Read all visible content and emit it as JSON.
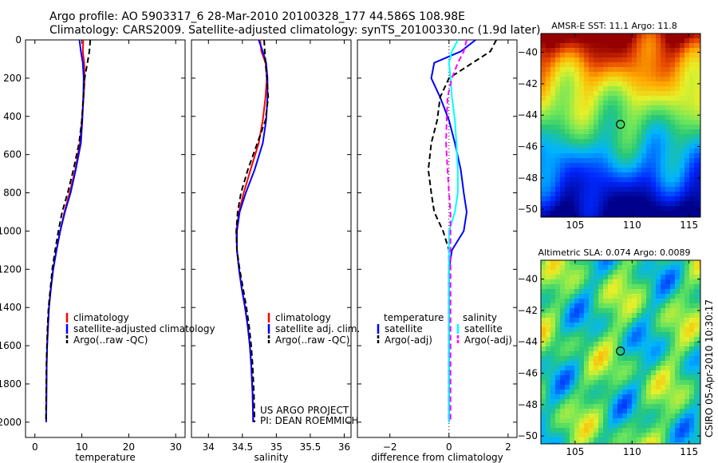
{
  "header": {
    "title_line1": "Argo profile: AO 5903317_6 28-Mar-2010 20100328_177 44.586S 108.98E",
    "title_line2": "Climatology: CARS2009. Satellite-adjusted climatology: synTS_20100330.nc (1.9d later)"
  },
  "colors": {
    "climatology": "#ff0000",
    "satellite": "#0000ff",
    "argo": "#000000",
    "satellite_salinity": "#00ffff",
    "argo_salinity": "#ff00ff",
    "dotted": "#000000"
  },
  "credits": {
    "project": "US ARGO PROJECT",
    "pi": "PI: DEAN ROEMMICH",
    "side": "CSIRO 05-Apr-2010 10:30:17"
  },
  "chart_data": [
    {
      "type": "line",
      "xlabel": "temperature",
      "ylabel": "",
      "xlim": [
        -2,
        32
      ],
      "ylim": [
        2080,
        0
      ],
      "xticks": [
        0,
        10,
        20,
        30
      ],
      "yticks": [
        0,
        200,
        400,
        600,
        800,
        1000,
        1200,
        1400,
        1600,
        1800,
        2000
      ],
      "legend": {
        "placement": "lower-right",
        "entries": [
          "climatology",
          "satellite-adjusted climatology",
          "Argo(..raw -QC)"
        ]
      },
      "series": [
        {
          "name": "climatology",
          "style": "solid",
          "color": "#ff0000",
          "x": [
            10.3,
            10.2,
            10.5,
            10.6,
            10.4,
            10.0,
            9.6,
            8.6,
            7.4,
            6.3,
            5.4,
            4.6,
            3.9,
            3.4,
            3.0,
            2.8,
            2.6,
            2.5,
            2.45,
            2.4
          ],
          "y": [
            0,
            60,
            120,
            200,
            300,
            420,
            540,
            680,
            800,
            900,
            1000,
            1100,
            1200,
            1300,
            1400,
            1500,
            1600,
            1700,
            1850,
            2000
          ]
        },
        {
          "name": "satellite-adjusted climatology",
          "style": "solid",
          "color": "#0000ff",
          "x": [
            9.5,
            9.8,
            10.2,
            10.4,
            10.3,
            10.1,
            9.8,
            8.7,
            7.6,
            6.4,
            5.4,
            4.6,
            3.9,
            3.4,
            3.0,
            2.8,
            2.6,
            2.5,
            2.45,
            2.4
          ],
          "y": [
            0,
            60,
            120,
            200,
            300,
            420,
            540,
            680,
            800,
            900,
            1000,
            1100,
            1200,
            1300,
            1400,
            1500,
            1600,
            1700,
            1850,
            2000
          ]
        },
        {
          "name": "Argo(..raw -QC)",
          "style": "dashed",
          "color": "#000000",
          "x": [
            11.8,
            11.6,
            11.2,
            10.6,
            10.3,
            10.0,
            9.4,
            8.2,
            7.0,
            5.8,
            5.0,
            4.3,
            3.7,
            3.3,
            2.9,
            2.7,
            2.55,
            2.45,
            2.4,
            2.35
          ],
          "y": [
            0,
            60,
            120,
            200,
            300,
            420,
            540,
            680,
            800,
            900,
            1000,
            1100,
            1200,
            1300,
            1400,
            1500,
            1600,
            1700,
            1850,
            2000
          ]
        }
      ]
    },
    {
      "type": "line",
      "xlabel": "salinity",
      "ylabel": "",
      "xlim": [
        33.75,
        36.1
      ],
      "ylim": [
        2080,
        0
      ],
      "xticks": [
        34,
        34.5,
        35,
        35.5,
        36
      ],
      "legend": {
        "placement": "lower-right",
        "entries": [
          "climatology",
          "satellite adj. clim.",
          "Argo(..raw -QC)"
        ]
      },
      "series": [
        {
          "name": "climatology",
          "style": "solid",
          "color": "#ff0000",
          "x": [
            34.76,
            34.78,
            34.84,
            34.86,
            34.84,
            34.8,
            34.74,
            34.62,
            34.52,
            34.45,
            34.41,
            34.42,
            34.45,
            34.49,
            34.54,
            34.58,
            34.61,
            34.63,
            34.65,
            34.66
          ],
          "y": [
            0,
            60,
            120,
            200,
            300,
            420,
            540,
            680,
            800,
            900,
            1000,
            1100,
            1200,
            1300,
            1400,
            1500,
            1600,
            1700,
            1850,
            2000
          ]
        },
        {
          "name": "satellite adj. clim.",
          "style": "solid",
          "color": "#0000ff",
          "x": [
            34.74,
            34.8,
            34.85,
            34.87,
            34.87,
            34.85,
            34.8,
            34.68,
            34.55,
            34.46,
            34.42,
            34.42,
            34.45,
            34.49,
            34.54,
            34.58,
            34.61,
            34.63,
            34.65,
            34.66
          ],
          "y": [
            0,
            60,
            120,
            200,
            300,
            420,
            540,
            680,
            800,
            900,
            1000,
            1100,
            1200,
            1300,
            1400,
            1500,
            1600,
            1700,
            1850,
            2000
          ]
        },
        {
          "name": "Argo(..raw -QC)",
          "style": "dashed",
          "color": "#000000",
          "x": [
            34.82,
            34.83,
            34.84,
            34.86,
            34.88,
            34.84,
            34.72,
            34.58,
            34.48,
            34.43,
            34.41,
            34.42,
            34.46,
            34.51,
            34.56,
            34.6,
            34.63,
            34.65,
            34.67,
            34.68
          ],
          "y": [
            0,
            60,
            120,
            200,
            300,
            420,
            540,
            680,
            800,
            900,
            1000,
            1100,
            1200,
            1300,
            1400,
            1500,
            1600,
            1700,
            1850,
            2000
          ]
        }
      ]
    },
    {
      "type": "line",
      "xlabel": "difference from climatology",
      "ylabel": "",
      "xlim": [
        -3.1,
        2.3
      ],
      "ylim": [
        2080,
        0
      ],
      "xticks": [
        -2,
        0,
        2
      ],
      "legend": {
        "placement": "lower-center",
        "entries": [
          "temperature",
          "satellite",
          "Argo(-adj)",
          "salinity",
          "satellite",
          "Argo(-adj)"
        ]
      },
      "series": [
        {
          "name": "temperature satellite",
          "style": "solid",
          "color": "#0000ff",
          "x": [
            0.9,
            0.4,
            -0.5,
            -0.6,
            -0.3,
            0.0,
            0.2,
            0.4,
            0.5,
            0.6,
            0.5,
            0.1,
            0.0,
            0.0,
            0.0,
            0.0,
            0.0
          ],
          "y": [
            0,
            60,
            120,
            200,
            300,
            420,
            540,
            680,
            800,
            900,
            1000,
            1100,
            1200,
            1400,
            1600,
            1800,
            2000
          ]
        },
        {
          "name": "temperature Argo(-adj)",
          "style": "dashed",
          "color": "#000000",
          "x": [
            1.6,
            1.4,
            0.8,
            0.0,
            -0.3,
            -0.4,
            -0.6,
            -0.7,
            -0.6,
            -0.5,
            -0.2,
            0.0,
            0.0,
            0.0,
            0.0,
            0.0,
            0.0
          ],
          "y": [
            0,
            60,
            120,
            200,
            300,
            420,
            540,
            680,
            800,
            900,
            1000,
            1100,
            1200,
            1400,
            1600,
            1800,
            2000
          ]
        },
        {
          "name": "salinity satellite",
          "style": "solid",
          "color": "#00ffff",
          "x": [
            0.3,
            0.1,
            0.0,
            0.05,
            0.1,
            0.2,
            0.25,
            0.3,
            0.3,
            0.2,
            0.0,
            0.0,
            0.0,
            0.0,
            0.0,
            0.0,
            0.0
          ],
          "y": [
            0,
            60,
            120,
            200,
            300,
            420,
            540,
            680,
            800,
            900,
            1000,
            1100,
            1200,
            1400,
            1600,
            1800,
            2000
          ]
        },
        {
          "name": "salinity Argo(-adj)",
          "style": "dashed",
          "color": "#ff00ff",
          "x": [
            0.6,
            0.5,
            0.3,
            0.1,
            -0.05,
            -0.08,
            -0.1,
            -0.05,
            0.0,
            0.05,
            0.05,
            0.05,
            0.05,
            0.05,
            0.05,
            0.05,
            0.05
          ],
          "y": [
            0,
            60,
            120,
            200,
            300,
            420,
            540,
            680,
            800,
            900,
            1000,
            1100,
            1200,
            1400,
            1600,
            1800,
            2000
          ]
        }
      ]
    },
    {
      "type": "heatmap",
      "title": "AMSR-E SST: 11.1  Argo: 11.8",
      "xlim": [
        102,
        116
      ],
      "ylim": [
        -50.5,
        -38.8
      ],
      "xticks": [
        105,
        110,
        115
      ],
      "yticks": [
        -40,
        -42,
        -44,
        -46,
        -48,
        -50
      ],
      "marker": {
        "x": 108.98,
        "y": -44.586
      }
    },
    {
      "type": "heatmap",
      "title": "Altimetric SLA: 0.074  Argo: 0.0089",
      "xlim": [
        102,
        116
      ],
      "ylim": [
        -50.5,
        -38.8
      ],
      "xticks": [
        105,
        110,
        115
      ],
      "yticks": [
        -40,
        -42,
        -44,
        -46,
        -48,
        -50
      ],
      "marker": {
        "x": 108.98,
        "y": -44.586
      }
    }
  ]
}
